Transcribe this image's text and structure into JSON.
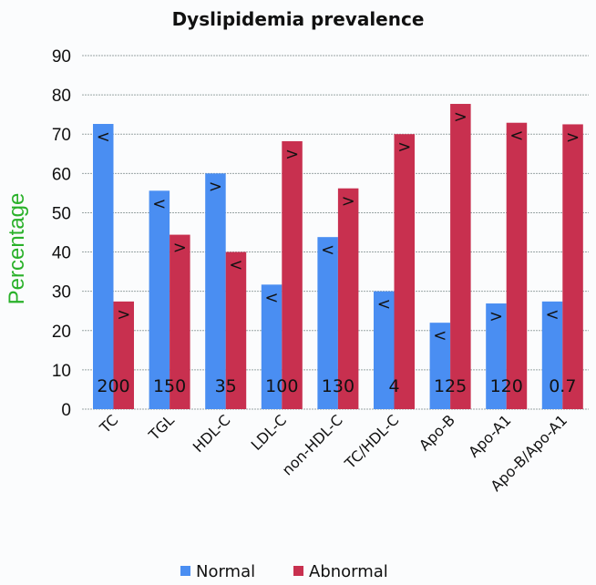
{
  "chart_data": {
    "type": "bar",
    "title": "Dyslipidemia prevalence",
    "xlabel": "",
    "ylabel": "Percentage",
    "ylim": [
      0,
      90
    ],
    "yticks": [
      0,
      10,
      20,
      30,
      40,
      50,
      60,
      70,
      80,
      90
    ],
    "grid": true,
    "legend_position": "bottom",
    "categories": [
      "TC",
      "TGL",
      "HDL-C",
      "LDL-C",
      "non-HDL-C",
      "TC/HDL-C",
      "Apo-B",
      "Apo-A1",
      "Apo-B/Apo-A1"
    ],
    "cutoffs": [
      "200",
      "150",
      "35",
      "100",
      "130",
      "4",
      "125",
      "120",
      "0.7"
    ],
    "series": [
      {
        "name": "Normal",
        "color": "#4a8ef2",
        "values": [
          72.6,
          55.6,
          60.0,
          31.7,
          43.8,
          30.0,
          22.0,
          26.9,
          27.4
        ],
        "markers": [
          "<",
          "<",
          ">",
          "<",
          "<",
          "<",
          "<",
          ">",
          "<"
        ]
      },
      {
        "name": "Abnormal",
        "color": "#c8304f",
        "values": [
          27.4,
          44.4,
          40.0,
          68.2,
          56.2,
          70.0,
          77.7,
          72.9,
          72.5
        ],
        "markers": [
          ">",
          ">",
          "<",
          ">",
          ">",
          ">",
          ">",
          "<",
          ">"
        ]
      }
    ]
  }
}
